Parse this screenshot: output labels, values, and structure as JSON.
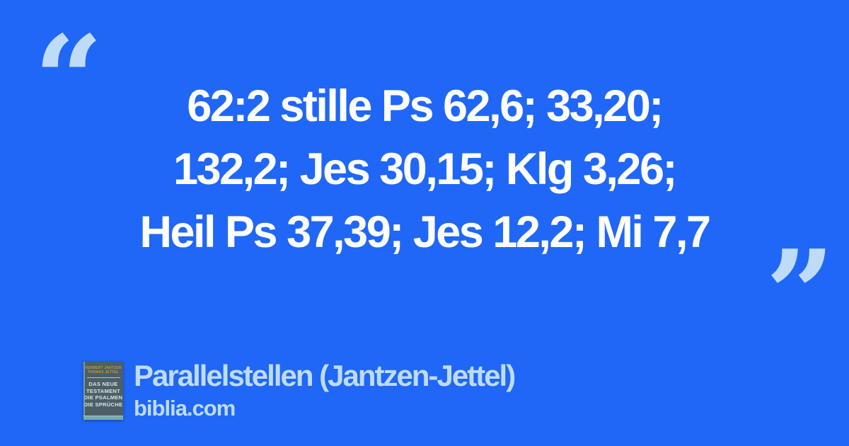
{
  "colors": {
    "background": "#2067F7",
    "accent_light": "#BEDCF8",
    "quote_text": "#FFFFFF",
    "cover_bg": "#4C5F66",
    "cover_accent": "#C7914C",
    "cover_text": "#DCE6E3",
    "cover_stripe": "#78AAAE",
    "cover_line": "#A9C2C4",
    "cover_spine": "#7FA9AD"
  },
  "quote": {
    "open_mark": "“",
    "close_mark": "”",
    "lines": [
      "62:2 stille Ps 62,6; 33,20;",
      "132,2; Jes 30,15; Klg 3,26;",
      "Heil Ps 37,39; Jes 12,2; Mi 7,7"
    ]
  },
  "footer": {
    "source_title": "Parallelstellen (Jantzen-Jettel)",
    "site": "biblia.com",
    "book_cover": {
      "author_line1": "HERBERT JANTZEN",
      "author_line2": "THOMAS JETTEL",
      "title_lines": [
        "DAS NEUE",
        "TESTAMENT",
        "DIE PSALMEN",
        "DIE SPRÜCHE"
      ]
    }
  }
}
